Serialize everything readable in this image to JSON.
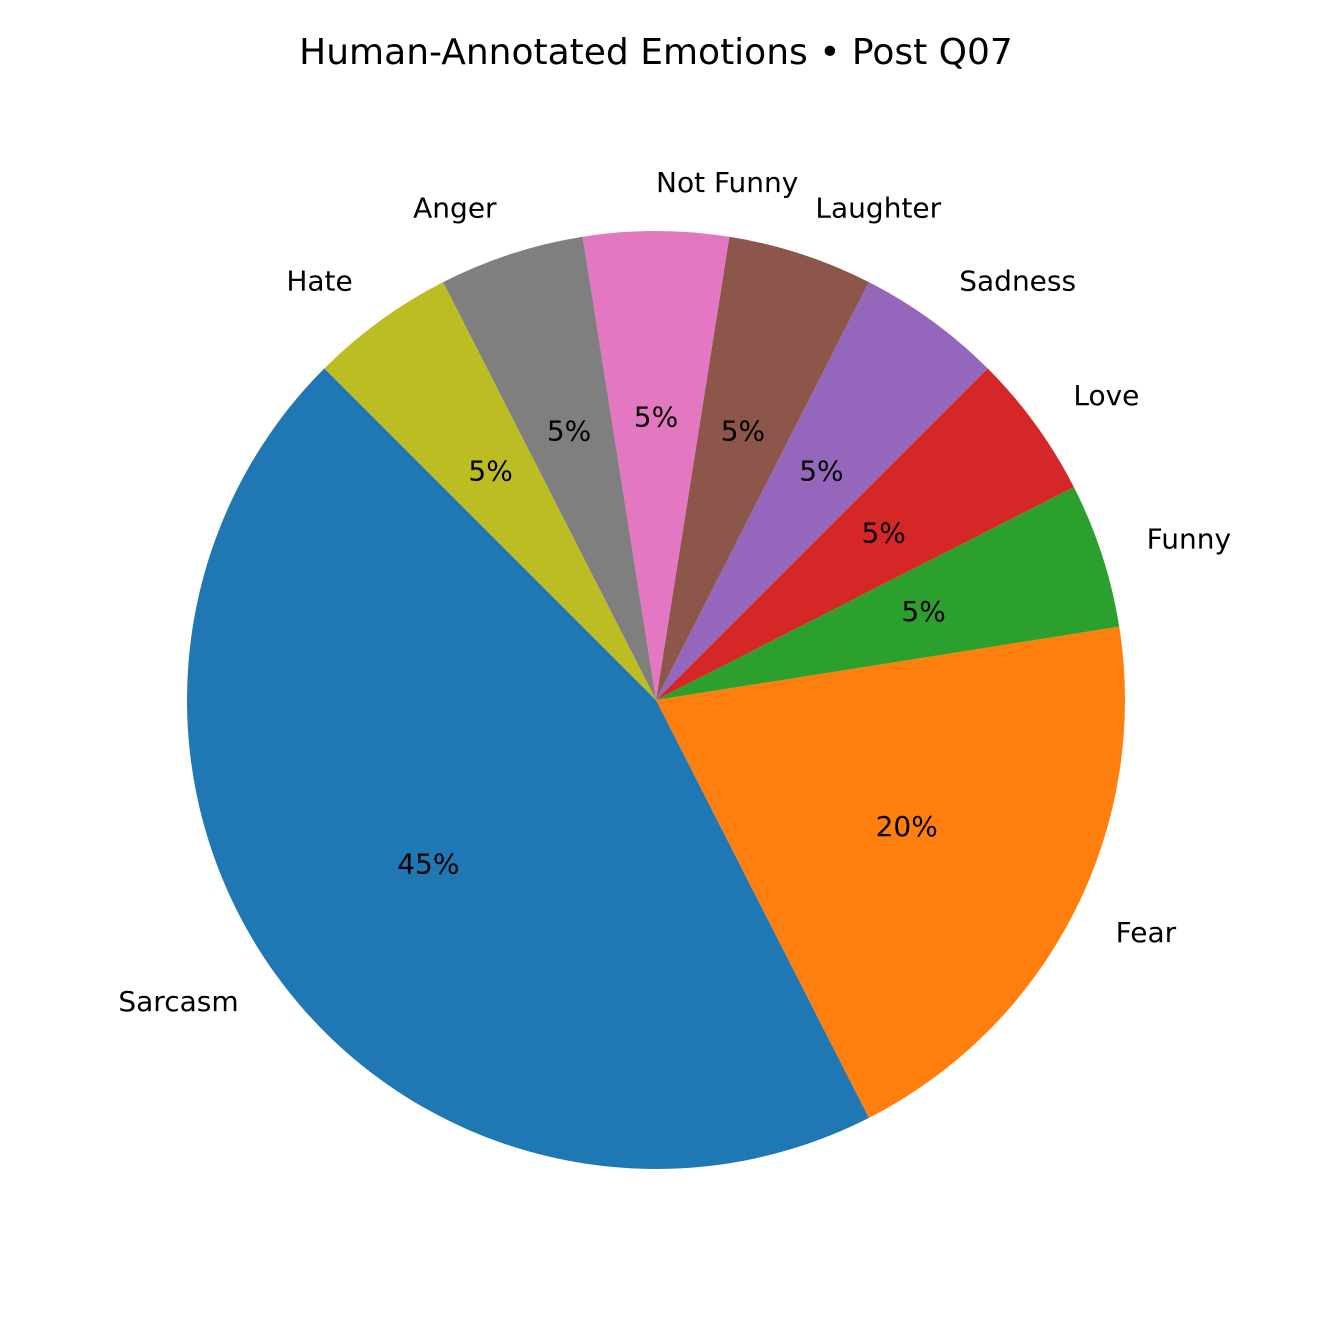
{
  "chart_data": {
    "type": "pie",
    "title": "Human-Annotated Emotions • Post Q07",
    "categories": [
      "Sarcasm",
      "Fear",
      "Funny",
      "Love",
      "Sadness",
      "Laughter",
      "Not Funny",
      "Anger",
      "Hate"
    ],
    "values": [
      45,
      20,
      5,
      5,
      5,
      5,
      5,
      5,
      5
    ],
    "value_labels": [
      "45%",
      "20%",
      "5%",
      "5%",
      "5%",
      "5%",
      "5%",
      "5%",
      "5%"
    ],
    "colors": [
      "#1f77b4",
      "#ff7f0e",
      "#2ca02c",
      "#d62728",
      "#9467bd",
      "#8c564b",
      "#e377c2",
      "#7f7f7f",
      "#bcbd22"
    ],
    "start_angle_deg": 135,
    "direction": "counterclockwise",
    "legend": "none"
  }
}
